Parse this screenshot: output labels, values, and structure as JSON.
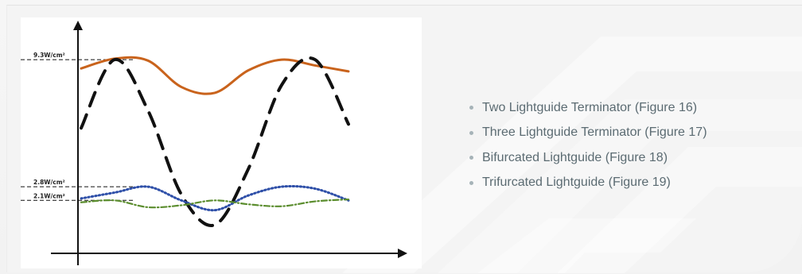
{
  "colors": {
    "background": "#f4f4f4",
    "chart_background": "#ffffff",
    "axis": "#111111",
    "text": "#5b6b72",
    "bullet": "#a6b3b8"
  },
  "chart_data": {
    "type": "line",
    "title": "",
    "xlabel": "",
    "ylabel": "",
    "x_range": [
      0,
      1
    ],
    "y_range": [
      0,
      10.4
    ],
    "y_axis_labels": [
      {
        "label": "9.3W/cm²",
        "value": 9.3
      },
      {
        "label": "2.8W/cm²",
        "value": 2.8
      },
      {
        "label": "2.1W/cm²",
        "value": 2.1
      }
    ],
    "series": [
      {
        "style": "solid",
        "color": "#c9631c",
        "x": [
          0.0,
          0.125,
          0.25,
          0.375,
          0.5,
          0.625,
          0.75,
          0.875,
          1.0
        ],
        "y": [
          8.85,
          9.35,
          9.25,
          7.9,
          7.6,
          8.75,
          9.3,
          9.0,
          8.7
        ]
      },
      {
        "style": "long-dash",
        "color": "#111111",
        "x": [
          0.0,
          0.125,
          0.25,
          0.375,
          0.5,
          0.625,
          0.75,
          0.875,
          1.0
        ],
        "y": [
          5.8,
          9.3,
          6.7,
          2.4,
          0.85,
          3.7,
          8.0,
          9.3,
          6.0
        ]
      },
      {
        "style": "dotted",
        "color": "#2e4fa8",
        "x": [
          0.0,
          0.125,
          0.25,
          0.375,
          0.5,
          0.625,
          0.75,
          0.875,
          1.0
        ],
        "y": [
          2.2,
          2.5,
          2.8,
          2.1,
          1.6,
          2.35,
          2.8,
          2.7,
          2.1
        ]
      },
      {
        "style": "dash-dot",
        "color": "#5b8d2e",
        "x": [
          0.0,
          0.125,
          0.25,
          0.375,
          0.5,
          0.625,
          0.75,
          0.875,
          1.0
        ],
        "y": [
          2.0,
          2.1,
          1.75,
          1.85,
          2.1,
          1.9,
          1.8,
          2.05,
          2.15
        ]
      }
    ],
    "grid": false,
    "legend": "none"
  },
  "legend_items": [
    {
      "label": "Two Lightguide Terminator (Figure 16)"
    },
    {
      "label": "Three Lightguide Terminator (Figure 17)"
    },
    {
      "label": "Bifurcated Lightguide (Figure 18)"
    },
    {
      "label": "Trifurcated Lightguide (Figure 19)"
    }
  ]
}
